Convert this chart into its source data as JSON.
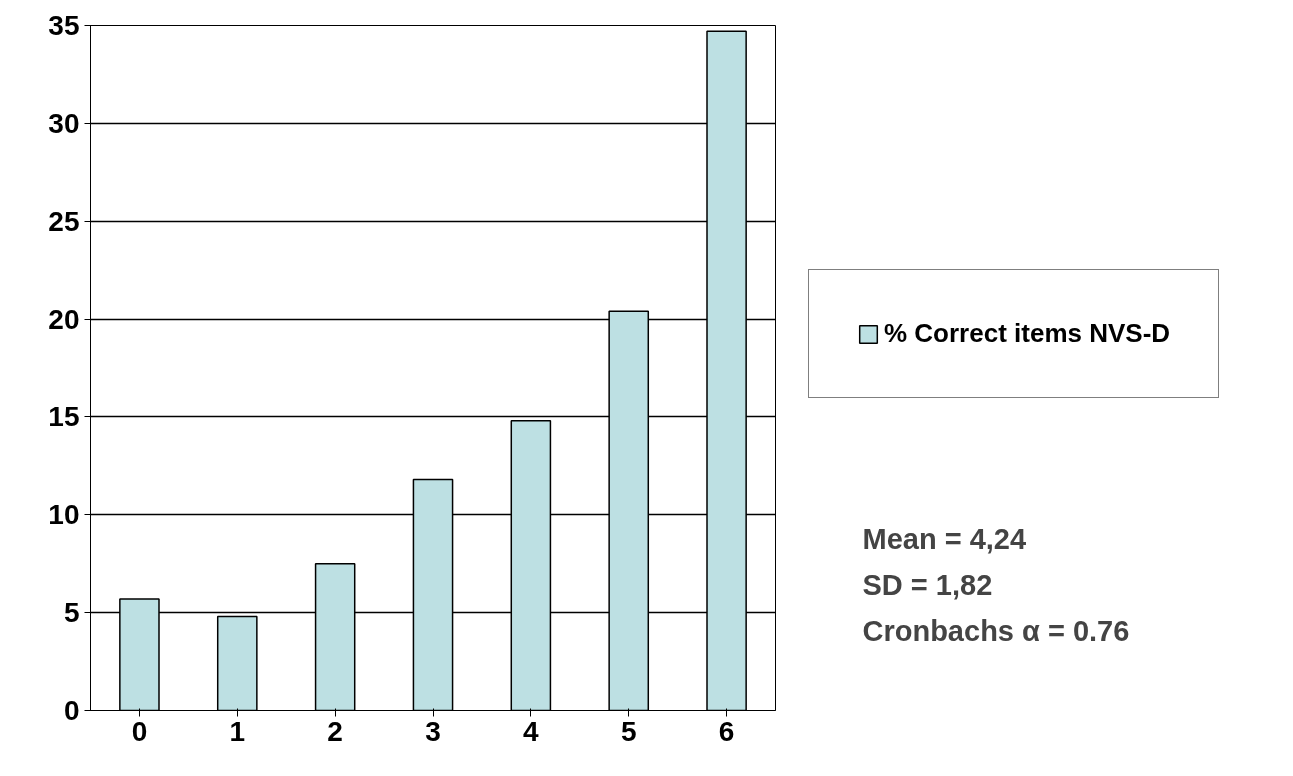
{
  "chart_data": {
    "type": "bar",
    "categories": [
      "0",
      "1",
      "2",
      "3",
      "4",
      "5",
      "6"
    ],
    "series": [
      {
        "name": "% Correct items NVS-D",
        "color": "#bde0e3",
        "values": [
          5.7,
          4.8,
          7.5,
          11.8,
          14.8,
          20.4,
          34.7
        ]
      }
    ],
    "ylim": [
      0,
      35
    ],
    "yticks": [
      0,
      5,
      10,
      15,
      20,
      25,
      30,
      35
    ],
    "grid": "y",
    "legend": "right",
    "annotations": [
      "Mean = 4,24",
      "SD = 1,82",
      "Cronbachs α = 0.76"
    ]
  }
}
